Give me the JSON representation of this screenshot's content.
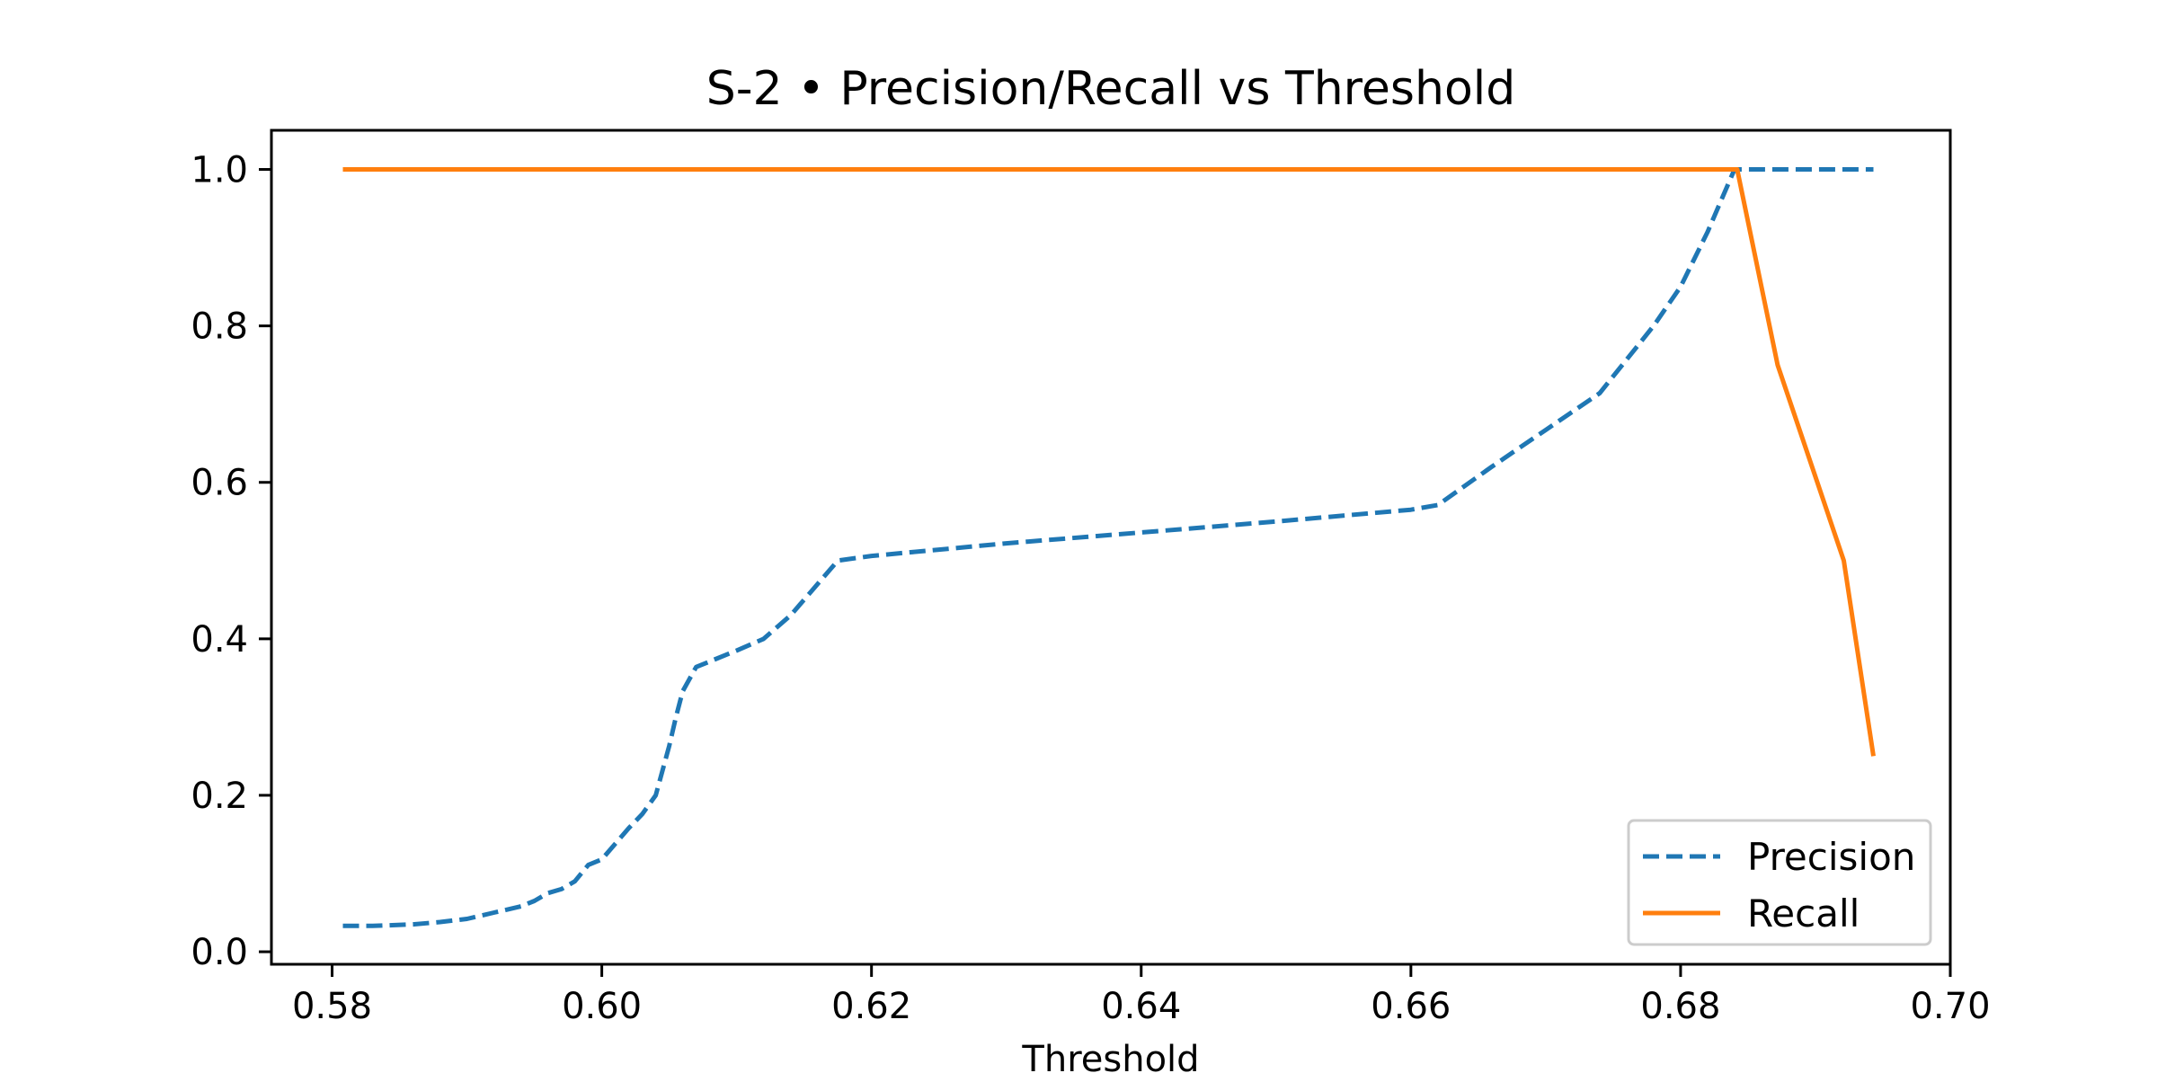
{
  "chart_data": {
    "type": "line",
    "title": "S-2 • Precision/Recall vs Threshold",
    "xlabel": "Threshold",
    "ylabel": "",
    "xlim": [
      0.5755,
      0.7
    ],
    "ylim": [
      -0.016,
      1.05
    ],
    "xticks": [
      0.58,
      0.6,
      0.62,
      0.64,
      0.66,
      0.68,
      0.7
    ],
    "xtick_labels": [
      "0.58",
      "0.60",
      "0.62",
      "0.64",
      "0.66",
      "0.68",
      "0.70"
    ],
    "yticks": [
      0.0,
      0.2,
      0.4,
      0.6,
      0.8,
      1.0
    ],
    "ytick_labels": [
      "0.0",
      "0.2",
      "0.4",
      "0.6",
      "0.8",
      "1.0"
    ],
    "grid": false,
    "legend_position": "lower-right",
    "series": [
      {
        "name": "Precision",
        "color": "#1f77b4",
        "line_style": "dashed",
        "x": [
          0.5808,
          0.583,
          0.586,
          0.588,
          0.59,
          0.592,
          0.594,
          0.595,
          0.596,
          0.597,
          0.598,
          0.599,
          0.6,
          0.601,
          0.602,
          0.603,
          0.604,
          0.605,
          0.6055,
          0.606,
          0.607,
          0.61,
          0.612,
          0.614,
          0.6155,
          0.6175,
          0.62,
          0.625,
          0.63,
          0.64,
          0.65,
          0.66,
          0.662,
          0.666,
          0.67,
          0.674,
          0.678,
          0.68,
          0.682,
          0.684,
          0.688,
          0.692,
          0.6943
        ],
        "y": [
          0.033,
          0.033,
          0.035,
          0.038,
          0.042,
          0.05,
          0.058,
          0.065,
          0.075,
          0.08,
          0.09,
          0.111,
          0.118,
          0.138,
          0.158,
          0.176,
          0.2,
          0.263,
          0.3,
          0.333,
          0.364,
          0.385,
          0.4,
          0.43,
          0.46,
          0.5,
          0.506,
          0.514,
          0.522,
          0.536,
          0.55,
          0.565,
          0.571,
          0.62,
          0.667,
          0.714,
          0.8,
          0.85,
          0.92,
          1.0,
          1.0,
          1.0,
          1.0
        ]
      },
      {
        "name": "Recall",
        "color": "#ff7f0e",
        "line_style": "solid",
        "x": [
          0.5808,
          0.6842,
          0.6872,
          0.6921,
          0.6943
        ],
        "y": [
          1.0,
          1.0,
          0.75,
          0.5,
          0.25
        ]
      }
    ]
  }
}
